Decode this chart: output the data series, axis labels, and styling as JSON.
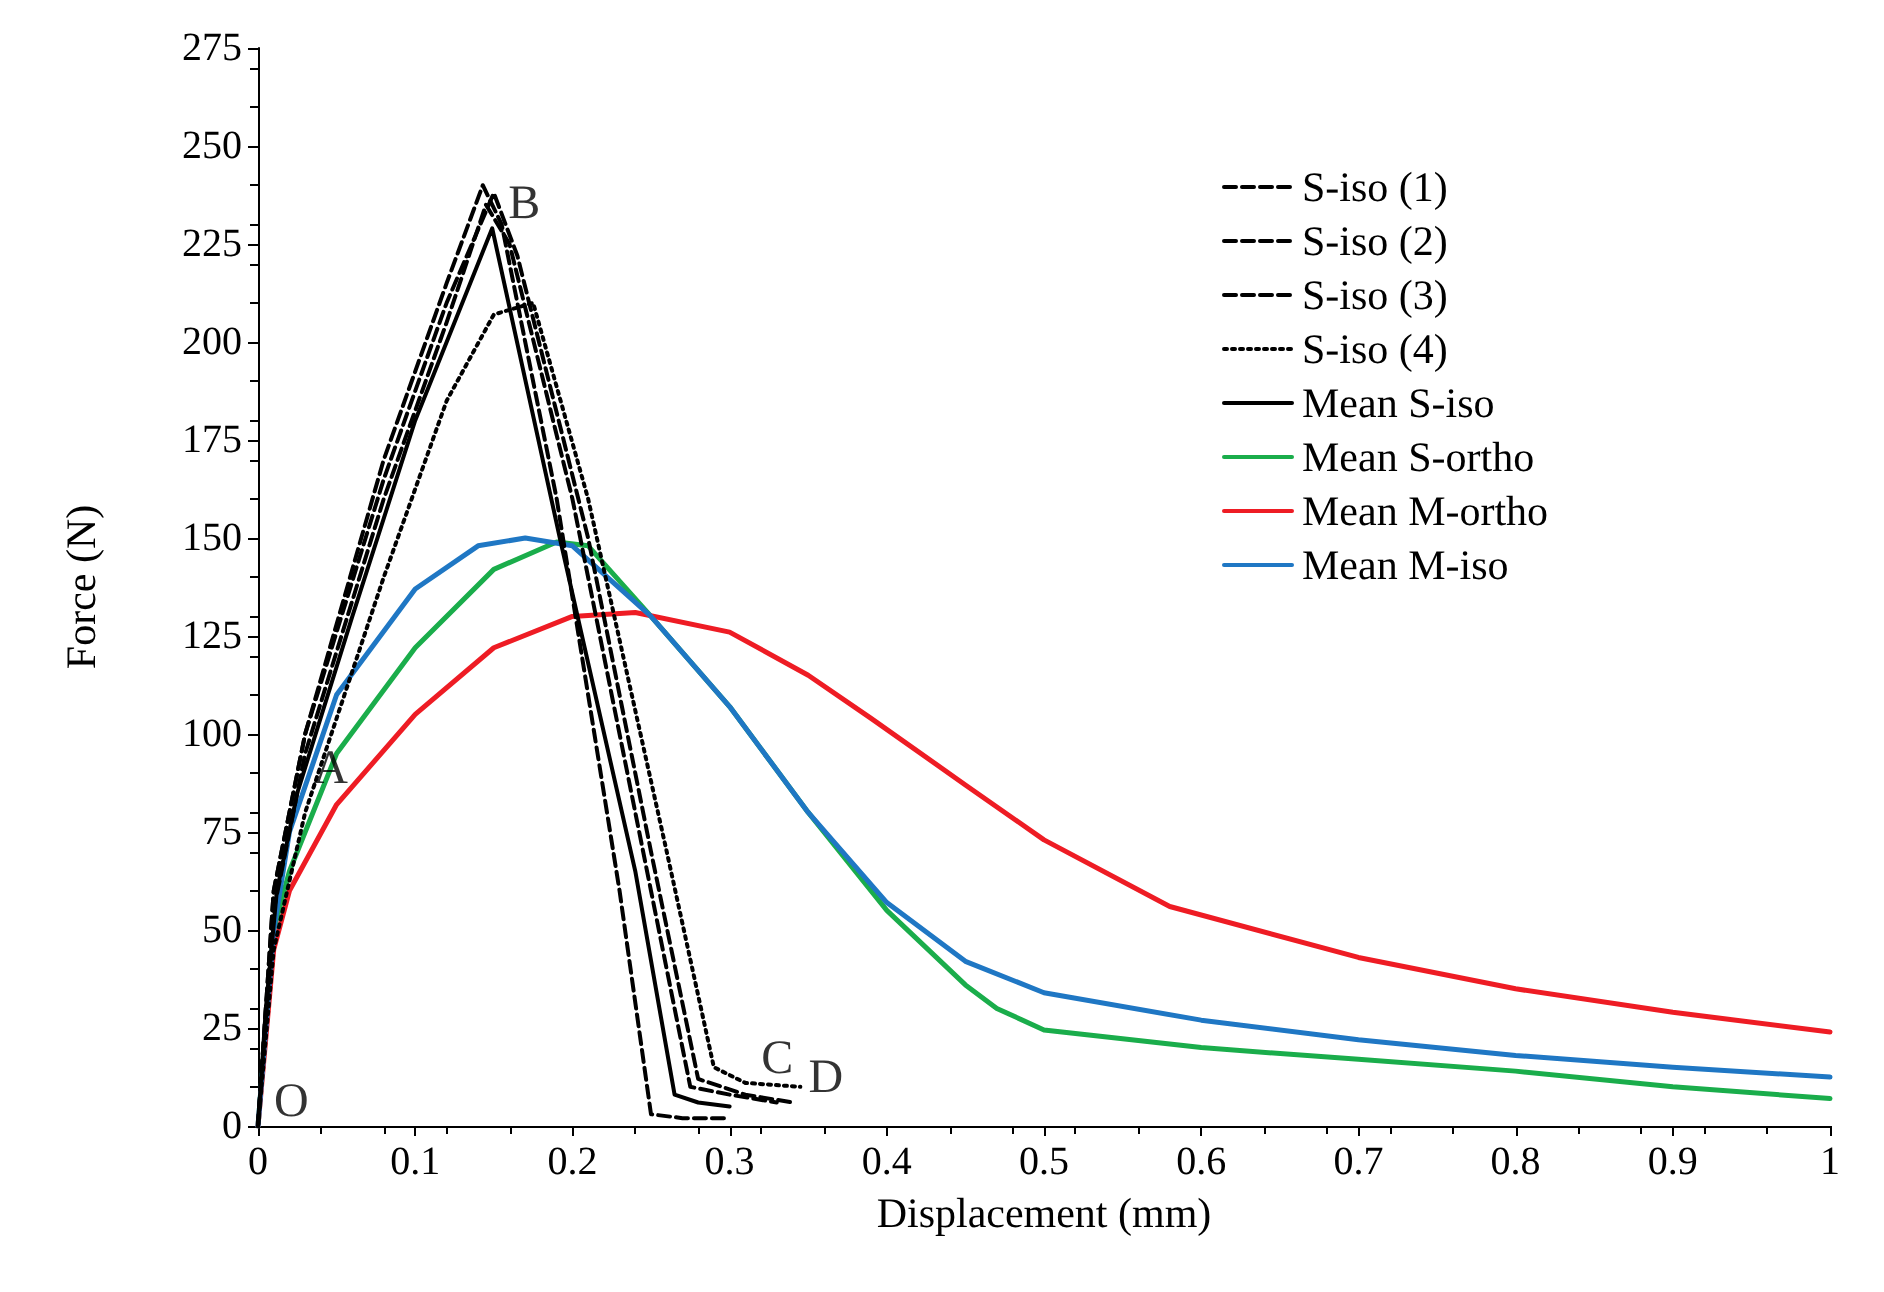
{
  "chart_data": {
    "type": "line",
    "xlabel": "Displacement (mm)",
    "ylabel": "Force (N)",
    "xlim": [
      0,
      1
    ],
    "xticks": [
      0,
      0.1,
      0.2,
      0.3,
      0.4,
      0.5,
      0.6,
      0.7,
      0.8,
      0.9,
      1
    ],
    "ylim": [
      0,
      275
    ],
    "yticks": [
      0,
      25,
      50,
      75,
      100,
      125,
      150,
      175,
      200,
      225,
      250,
      275
    ],
    "grid": false,
    "legend": "top right",
    "marker": "none",
    "series": [
      {
        "name": "S-iso (1)",
        "color": "#000000",
        "line_style": "dashed",
        "x": [
          0,
          0.01,
          0.03,
          0.08,
          0.12,
          0.145,
          0.16,
          0.2,
          0.25,
          0.275,
          0.3,
          0.33
        ],
        "values": [
          0,
          55,
          95,
          160,
          205,
          235,
          225,
          160,
          60,
          10,
          8,
          6
        ]
      },
      {
        "name": "S-iso (2)",
        "color": "#000000",
        "line_style": "dashed",
        "x": [
          0,
          0.01,
          0.03,
          0.08,
          0.12,
          0.15,
          0.165,
          0.21,
          0.25,
          0.28,
          0.31,
          0.34
        ],
        "values": [
          0,
          60,
          100,
          165,
          210,
          238,
          222,
          150,
          70,
          12,
          8,
          6
        ]
      },
      {
        "name": "S-iso (3)",
        "color": "#000000",
        "line_style": "dashed",
        "x": [
          0,
          0.01,
          0.03,
          0.08,
          0.12,
          0.143,
          0.155,
          0.19,
          0.23,
          0.25,
          0.27,
          0.3
        ],
        "values": [
          0,
          60,
          100,
          170,
          215,
          240,
          230,
          160,
          60,
          3,
          2,
          2
        ]
      },
      {
        "name": "S-iso (4)",
        "color": "#000000",
        "line_style": "dotted",
        "x": [
          0,
          0.01,
          0.03,
          0.08,
          0.12,
          0.15,
          0.175,
          0.21,
          0.26,
          0.29,
          0.31,
          0.345
        ],
        "values": [
          0,
          45,
          80,
          140,
          185,
          207,
          210,
          160,
          70,
          15,
          11,
          10
        ]
      },
      {
        "name": "Mean S-iso",
        "color": "#000000",
        "line_style": "solid",
        "x": [
          0,
          0.005,
          0.012,
          0.025,
          0.06,
          0.1,
          0.149,
          0.192,
          0.24,
          0.265,
          0.28,
          0.3
        ],
        "values": [
          0,
          30,
          60,
          85,
          130,
          180,
          229,
          150,
          65,
          8,
          6,
          5
        ]
      },
      {
        "name": "Mean S-ortho",
        "color": "#1aad4b",
        "line_style": "solid",
        "x": [
          0,
          0.01,
          0.02,
          0.05,
          0.1,
          0.15,
          0.19,
          0.21,
          0.25,
          0.3,
          0.35,
          0.4,
          0.45,
          0.47,
          0.5,
          0.6,
          0.7,
          0.8,
          0.9,
          1
        ],
        "values": [
          0,
          50,
          65,
          95,
          122,
          142,
          149,
          148,
          130,
          107,
          80,
          55,
          36,
          30,
          24.5,
          20,
          17,
          14,
          10,
          7
        ]
      },
      {
        "name": "Mean M-ortho",
        "color": "#ee1c24",
        "line_style": "solid",
        "x": [
          0,
          0.01,
          0.02,
          0.05,
          0.1,
          0.15,
          0.2,
          0.24,
          0.3,
          0.35,
          0.39,
          0.45,
          0.5,
          0.58,
          0.7,
          0.8,
          0.9,
          1
        ],
        "values": [
          0,
          45,
          60,
          82,
          105,
          122,
          130,
          131,
          126,
          115,
          104,
          87,
          73,
          56,
          43,
          35,
          29,
          24
        ]
      },
      {
        "name": "Mean M-iso",
        "color": "#1f77c4",
        "line_style": "solid",
        "x": [
          0,
          0.01,
          0.02,
          0.05,
          0.1,
          0.14,
          0.17,
          0.2,
          0.25,
          0.3,
          0.35,
          0.4,
          0.45,
          0.5,
          0.6,
          0.7,
          0.8,
          0.9,
          1
        ],
        "values": [
          0,
          50,
          75,
          110,
          137,
          148,
          150,
          148,
          130,
          107,
          80,
          57,
          42,
          34,
          27,
          22,
          18,
          15,
          12.5
        ]
      }
    ],
    "annotations": [
      {
        "text": "O",
        "x": 0,
        "y": 0
      },
      {
        "text": "A",
        "x": 0.025,
        "y": 85
      },
      {
        "text": "B",
        "x": 0.149,
        "y": 229
      },
      {
        "text": "C",
        "x": 0.31,
        "y": 11
      },
      {
        "text": "D",
        "x": 0.34,
        "y": 6
      }
    ]
  }
}
